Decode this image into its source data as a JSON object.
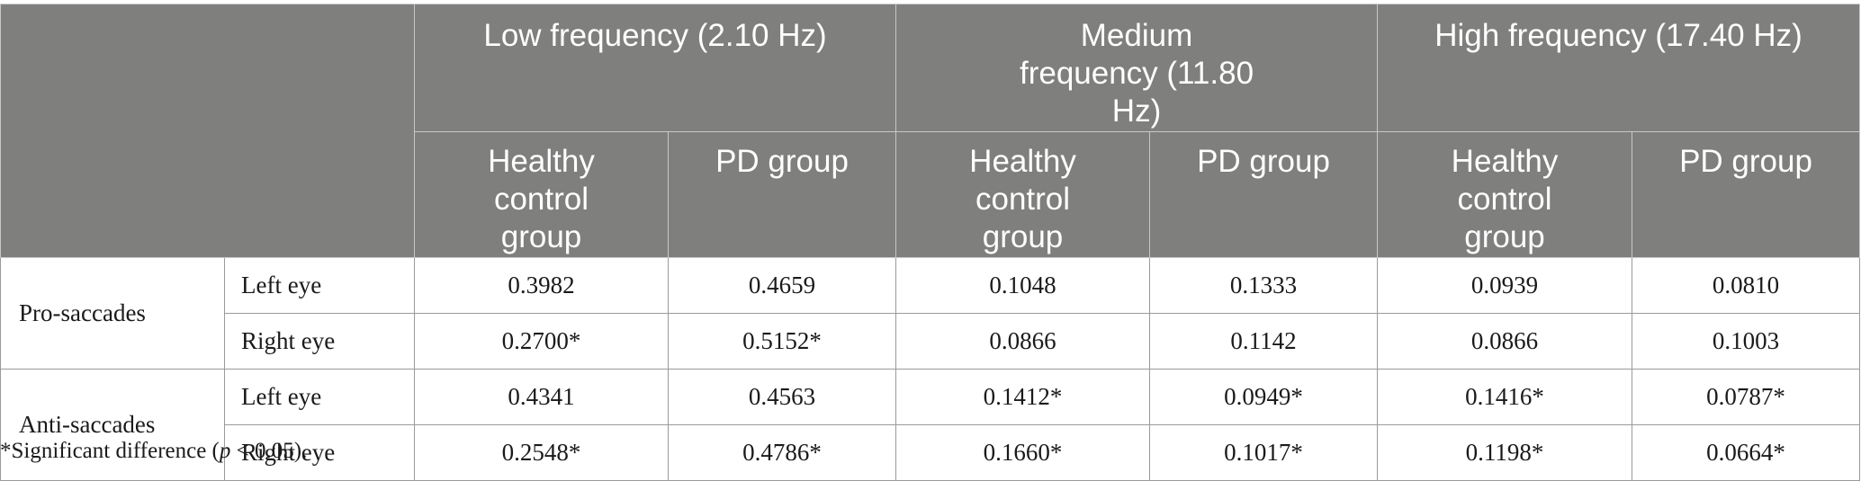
{
  "table": {
    "frequency_headers": [
      "Low frequency (2.10 Hz)",
      "Medium frequency (11.80 Hz)",
      "High frequency (17.40 Hz)"
    ],
    "group_headers": [
      "Healthy control group",
      "PD group"
    ],
    "row_groups": [
      {
        "label": "Pro-saccades",
        "rows": [
          {
            "eye": "Left eye",
            "values": [
              "0.3982",
              "0.4659",
              "0.1048",
              "0.1333",
              "0.0939",
              "0.0810"
            ]
          },
          {
            "eye": "Right eye",
            "values": [
              "0.2700*",
              "0.5152*",
              "0.0866",
              "0.1142",
              "0.0866",
              "0.1003"
            ]
          }
        ]
      },
      {
        "label": "Anti-saccades",
        "rows": [
          {
            "eye": "Left eye",
            "values": [
              "0.4341",
              "0.4563",
              "0.1412*",
              "0.0949*",
              "0.1416*",
              "0.0787*"
            ]
          },
          {
            "eye": "Right eye",
            "values": [
              "0.2548*",
              "0.4786*",
              "0.1660*",
              "0.1017*",
              "0.1198*",
              "0.0664*"
            ]
          }
        ]
      }
    ]
  },
  "footnote": {
    "prefix": "*Significant difference (",
    "p_symbol": "p",
    "suffix": " < 0.05)."
  }
}
